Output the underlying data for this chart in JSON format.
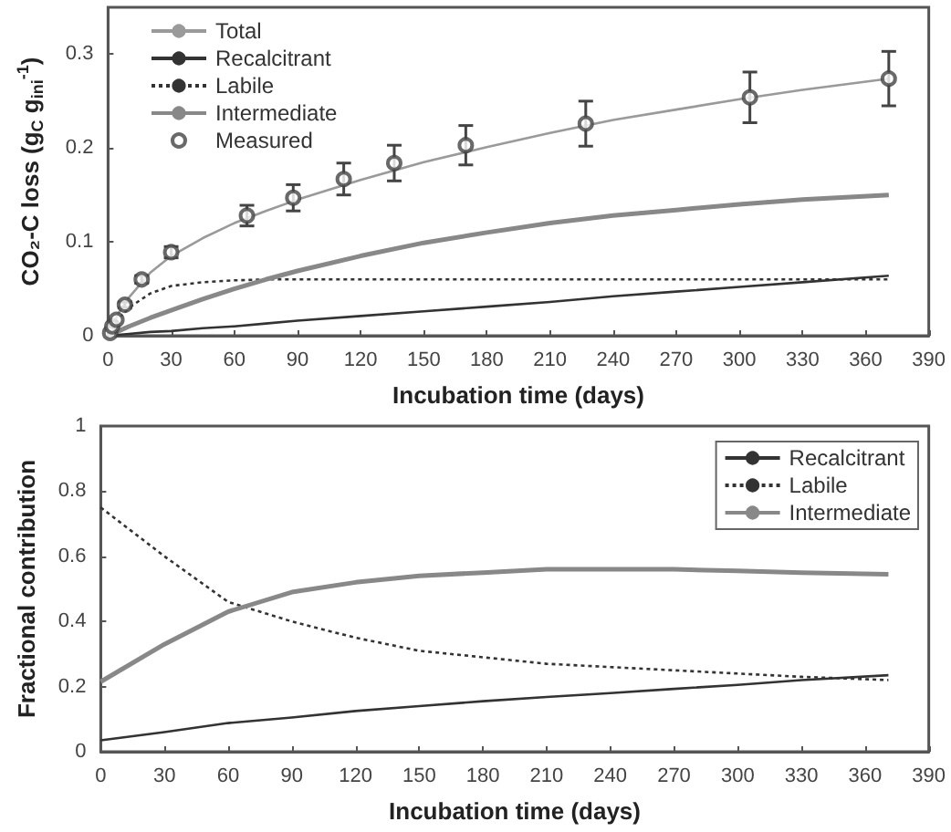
{
  "chart_data": [
    {
      "type": "line",
      "xlabel": "Incubation time (days)",
      "ylabel": "CO₂-C loss (g$_{C}$ g$_{ini}$$^{-1}$)",
      "xlim": [
        0,
        390
      ],
      "xticks": [
        0,
        30,
        60,
        90,
        120,
        150,
        180,
        210,
        240,
        270,
        300,
        330,
        360,
        390
      ],
      "ylim": [
        0,
        0.35
      ],
      "yticks": [
        0,
        0.1,
        0.2,
        0.3
      ],
      "grid": false,
      "legend": "top left",
      "series": [
        {
          "name": "Total",
          "color": "#9a9a9a",
          "line_style": "solid",
          "marker": "none",
          "x": [
            0,
            5,
            10,
            20,
            30,
            45,
            60,
            75,
            90,
            120,
            150,
            180,
            210,
            240,
            270,
            300,
            330,
            371
          ],
          "values": [
            0,
            0.024,
            0.041,
            0.067,
            0.085,
            0.104,
            0.12,
            0.133,
            0.145,
            0.166,
            0.185,
            0.201,
            0.216,
            0.23,
            0.241,
            0.252,
            0.262,
            0.274
          ]
        },
        {
          "name": "Recalcitrant",
          "color": "#333333",
          "line_style": "solid",
          "marker": "none",
          "x": [
            0,
            5,
            10,
            20,
            30,
            45,
            60,
            75,
            90,
            120,
            150,
            180,
            210,
            240,
            270,
            300,
            330,
            371
          ],
          "values": [
            0,
            0.001,
            0.002,
            0.004,
            0.005,
            0.008,
            0.01,
            0.013,
            0.016,
            0.021,
            0.026,
            0.031,
            0.036,
            0.042,
            0.047,
            0.052,
            0.057,
            0.064
          ]
        },
        {
          "name": "Labile",
          "color": "#333333",
          "line_style": "dotted",
          "marker": "none",
          "x": [
            0,
            5,
            10,
            20,
            30,
            45,
            60,
            75,
            90,
            120,
            150,
            180,
            210,
            240,
            270,
            300,
            330,
            371
          ],
          "values": [
            0,
            0.018,
            0.03,
            0.045,
            0.053,
            0.057,
            0.059,
            0.06,
            0.06,
            0.06,
            0.06,
            0.06,
            0.06,
            0.06,
            0.06,
            0.06,
            0.06,
            0.06
          ]
        },
        {
          "name": "Intermediate",
          "color": "#888888",
          "line_style": "solid",
          "marker": "none",
          "x": [
            0,
            5,
            10,
            20,
            30,
            45,
            60,
            75,
            90,
            120,
            150,
            180,
            210,
            240,
            270,
            300,
            330,
            371
          ],
          "values": [
            0,
            0.005,
            0.01,
            0.019,
            0.027,
            0.039,
            0.05,
            0.06,
            0.069,
            0.085,
            0.099,
            0.11,
            0.12,
            0.128,
            0.134,
            0.14,
            0.145,
            0.15
          ]
        },
        {
          "name": "Measured",
          "type": "scatter",
          "color": "#444444",
          "marker": "circle",
          "x": [
            1,
            2,
            4,
            8,
            16,
            30,
            66,
            88,
            112,
            136,
            170,
            227,
            305,
            371
          ],
          "values": [
            0.003,
            0.01,
            0.017,
            0.033,
            0.06,
            0.089,
            0.128,
            0.147,
            0.167,
            0.184,
            0.203,
            0.226,
            0.254,
            0.274
          ],
          "errors": [
            null,
            null,
            null,
            0.003,
            0.004,
            0.006,
            0.011,
            0.014,
            0.017,
            0.019,
            0.021,
            0.024,
            0.027,
            0.029
          ]
        }
      ]
    },
    {
      "type": "line",
      "xlabel": "Incubation time (days)",
      "ylabel": "Fractional contribution",
      "xlim": [
        0,
        390
      ],
      "xticks": [
        0,
        30,
        60,
        90,
        120,
        150,
        180,
        210,
        240,
        270,
        300,
        330,
        360,
        390
      ],
      "ylim": [
        0,
        1
      ],
      "yticks": [
        0,
        0.2,
        0.4,
        0.6,
        0.8,
        1
      ],
      "grid": false,
      "legend": "top right",
      "series": [
        {
          "name": "Recalcitrant",
          "color": "#333333",
          "line_style": "solid",
          "marker": "none",
          "x": [
            0,
            30,
            60,
            90,
            120,
            150,
            180,
            210,
            240,
            270,
            300,
            330,
            371
          ],
          "values": [
            0.035,
            0.06,
            0.088,
            0.105,
            0.125,
            0.14,
            0.155,
            0.168,
            0.18,
            0.193,
            0.205,
            0.22,
            0.235
          ]
        },
        {
          "name": "Labile",
          "color": "#333333",
          "line_style": "dotted",
          "marker": "none",
          "x": [
            0,
            30,
            60,
            90,
            120,
            150,
            180,
            210,
            240,
            270,
            300,
            330,
            371
          ],
          "values": [
            0.75,
            0.6,
            0.46,
            0.4,
            0.35,
            0.31,
            0.29,
            0.27,
            0.26,
            0.25,
            0.24,
            0.23,
            0.22
          ]
        },
        {
          "name": "Intermediate",
          "color": "#888888",
          "line_style": "solid",
          "marker": "none",
          "x": [
            0,
            30,
            60,
            90,
            120,
            150,
            180,
            210,
            240,
            270,
            300,
            330,
            371
          ],
          "values": [
            0.215,
            0.33,
            0.43,
            0.49,
            0.52,
            0.54,
            0.55,
            0.56,
            0.56,
            0.56,
            0.555,
            0.55,
            0.545
          ]
        }
      ]
    }
  ]
}
